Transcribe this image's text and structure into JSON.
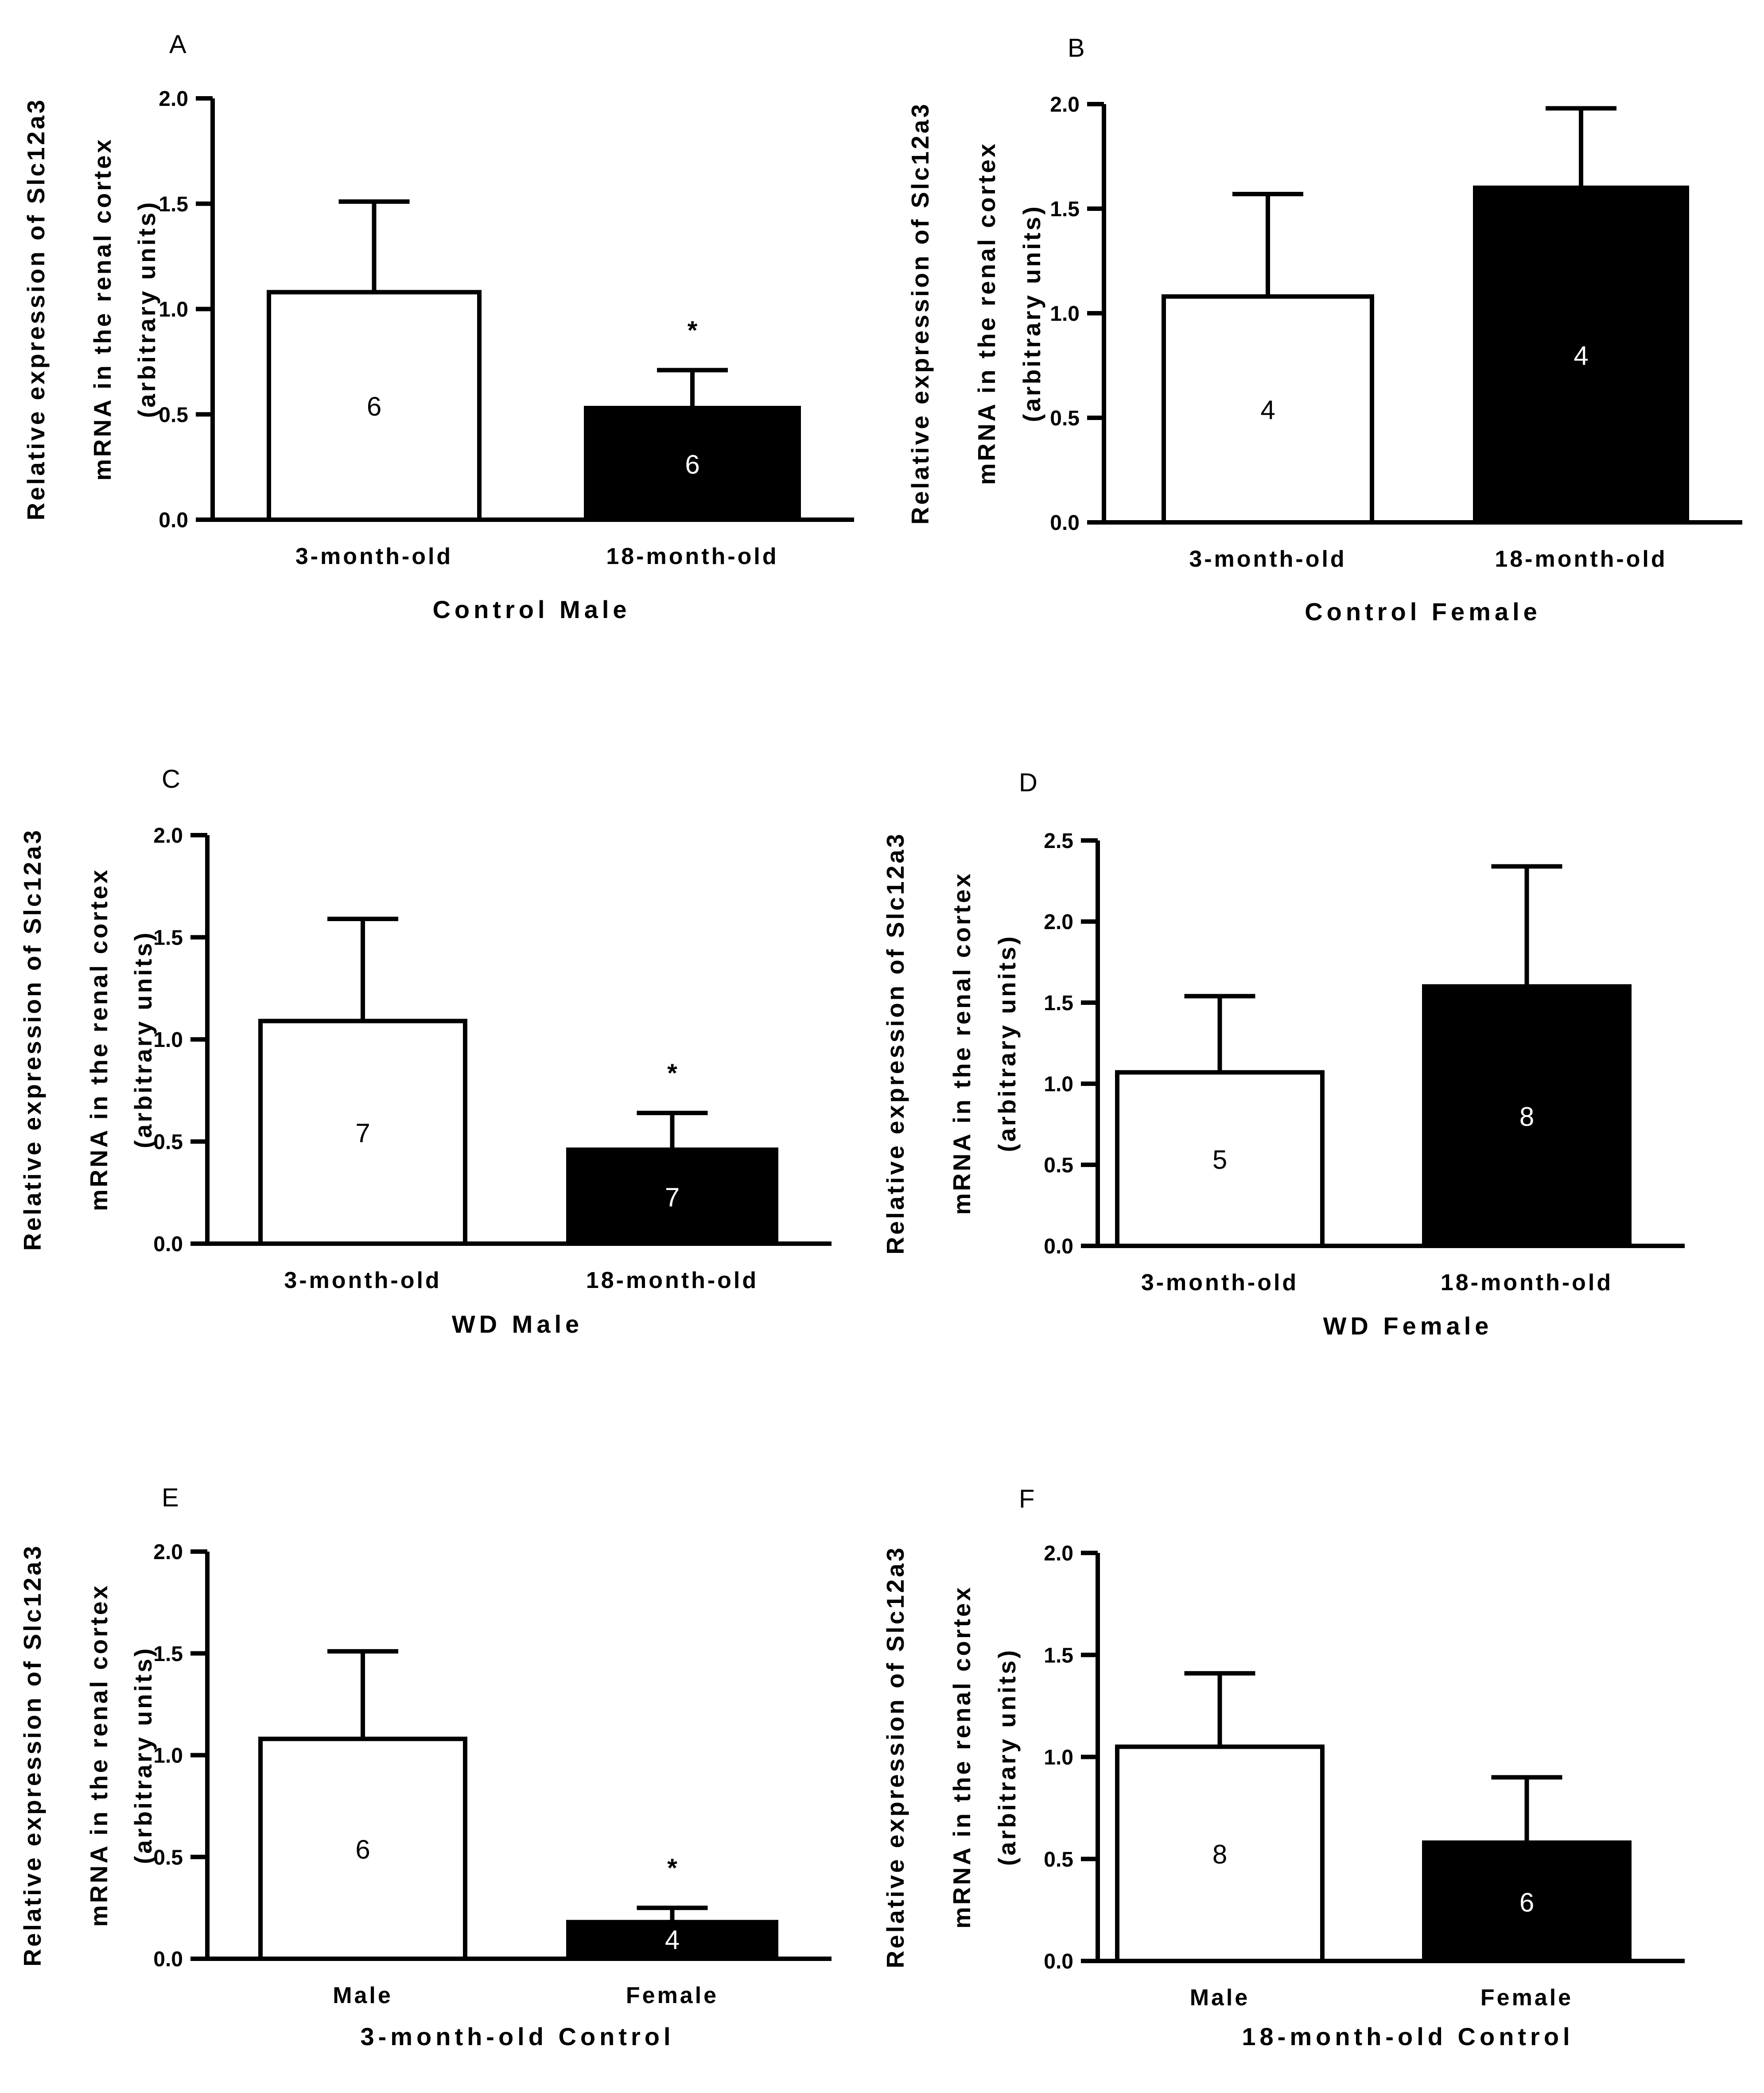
{
  "chart_data": [
    {
      "id": "A",
      "type": "bar",
      "panel_label": "A",
      "categories": [
        "3-month-old",
        "18-month-old"
      ],
      "values": [
        1.08,
        0.53
      ],
      "errors": [
        0.43,
        0.18
      ],
      "n": [
        "6",
        "6"
      ],
      "significance": [
        "",
        "*"
      ],
      "fills": [
        "#ffffff",
        "#000000"
      ],
      "ylim": [
        0,
        2.0
      ],
      "yticks": [
        "0.0",
        "0.5",
        "1.0",
        "1.5",
        "2.0"
      ],
      "xlabel": "Control Male",
      "ylabel": [
        "Relative expression of Slc12a3",
        "mRNA in the renal cortex",
        "(arbitrary units)"
      ]
    },
    {
      "id": "B",
      "type": "bar",
      "panel_label": "B",
      "categories": [
        "3-month-old",
        "18-month-old"
      ],
      "values": [
        1.08,
        1.6
      ],
      "errors": [
        0.49,
        0.38
      ],
      "n": [
        "4",
        "4"
      ],
      "significance": [
        "",
        ""
      ],
      "fills": [
        "#ffffff",
        "#000000"
      ],
      "ylim": [
        0,
        2.0
      ],
      "yticks": [
        "0.0",
        "0.5",
        "1.0",
        "1.5",
        "2.0"
      ],
      "xlabel": "Control Female",
      "ylabel": [
        "Relative expression of Slc12a3",
        "mRNA in the renal cortex",
        "(arbitrary units)"
      ]
    },
    {
      "id": "C",
      "type": "bar",
      "panel_label": "C",
      "categories": [
        "3-month-old",
        "18-month-old"
      ],
      "values": [
        1.09,
        0.46
      ],
      "errors": [
        0.5,
        0.18
      ],
      "n": [
        "7",
        "7"
      ],
      "significance": [
        "",
        "*"
      ],
      "fills": [
        "#ffffff",
        "#000000"
      ],
      "ylim": [
        0,
        2.0
      ],
      "yticks": [
        "0.0",
        "0.5",
        "1.0",
        "1.5",
        "2.0"
      ],
      "xlabel": "WD Male",
      "ylabel": [
        "Relative expression of Slc12a3",
        "mRNA in the renal cortex",
        "(arbitrary units)"
      ]
    },
    {
      "id": "D",
      "type": "bar",
      "panel_label": "D",
      "categories": [
        "3-month-old",
        "18-month-old"
      ],
      "values": [
        1.07,
        1.6
      ],
      "errors": [
        0.47,
        0.74
      ],
      "n": [
        "5",
        "8"
      ],
      "significance": [
        "",
        ""
      ],
      "fills": [
        "#ffffff",
        "#000000"
      ],
      "ylim": [
        0,
        2.5
      ],
      "yticks": [
        "0.0",
        "0.5",
        "1.0",
        "1.5",
        "2.0",
        "2.5"
      ],
      "xlabel": "WD Female",
      "ylabel": [
        "Relative expression of Slc12a3",
        "mRNA in the renal cortex",
        "(arbitrary units)"
      ]
    },
    {
      "id": "E",
      "type": "bar",
      "panel_label": "E",
      "categories": [
        "Male",
        "Female"
      ],
      "values": [
        1.08,
        0.18
      ],
      "errors": [
        0.43,
        0.07
      ],
      "n": [
        "6",
        "4"
      ],
      "significance": [
        "",
        "*"
      ],
      "fills": [
        "#ffffff",
        "#000000"
      ],
      "ylim": [
        0,
        2.0
      ],
      "yticks": [
        "0.0",
        "0.5",
        "1.0",
        "1.5",
        "2.0"
      ],
      "xlabel": "3-month-old Control",
      "ylabel": [
        "Relative expression of Slc12a3",
        "mRNA in the renal cortex",
        "(arbitrary units)"
      ]
    },
    {
      "id": "F",
      "type": "bar",
      "panel_label": "F",
      "categories": [
        "Male",
        "Female"
      ],
      "values": [
        1.05,
        0.58
      ],
      "errors": [
        0.36,
        0.32
      ],
      "n": [
        "8",
        "6"
      ],
      "significance": [
        "",
        ""
      ],
      "fills": [
        "#ffffff",
        "#000000"
      ],
      "ylim": [
        0,
        2.0
      ],
      "yticks": [
        "0.0",
        "0.5",
        "1.0",
        "1.5",
        "2.0"
      ],
      "xlabel": "18-month-old Control",
      "ylabel": [
        "Relative expression of Slc12a3",
        "mRNA in the renal cortex",
        "(arbitrary units)"
      ]
    }
  ]
}
